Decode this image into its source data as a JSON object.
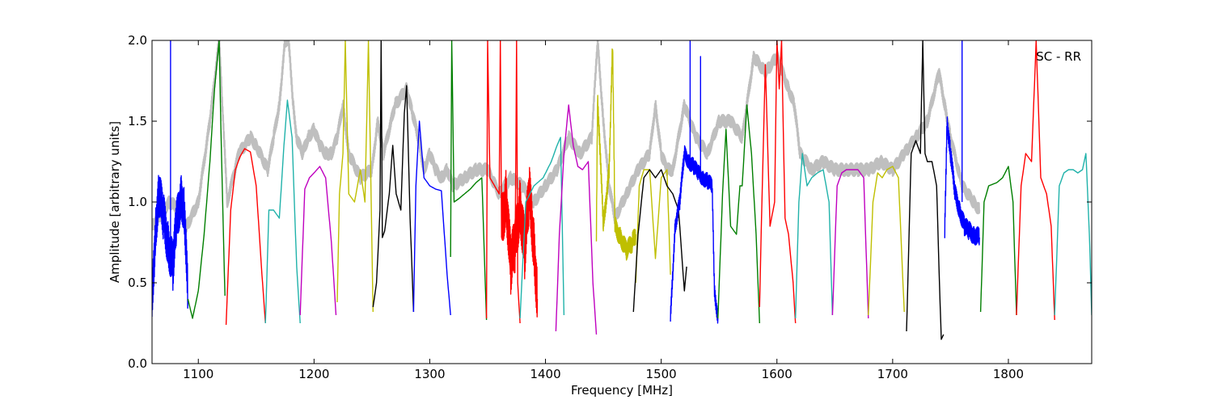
{
  "chart_data": {
    "type": "line",
    "xlabel": "Frequency [MHz]",
    "ylabel": "Amplitude [arbitrary units]",
    "xlim": [
      1060,
      1872
    ],
    "ylim": [
      0.0,
      2.0
    ],
    "xticks": [
      1100,
      1200,
      1300,
      1400,
      1500,
      1600,
      1700,
      1800
    ],
    "xtick_labels": [
      "1100",
      "1200",
      "1300",
      "1400",
      "1500",
      "1600",
      "1700",
      "1800"
    ],
    "yticks": [
      0.0,
      0.5,
      1.0,
      1.5,
      2.0
    ],
    "ytick_labels": [
      "0.0",
      "0.5",
      "1.0",
      "1.5",
      "2.0"
    ],
    "annotation": "SC - RR",
    "grid": false,
    "colors": {
      "blue": "#0000ff",
      "green": "#007f00",
      "red": "#ff0000",
      "cyan": "#20b2aa",
      "magenta": "#bf00bf",
      "yellow": "#bfbf00",
      "black": "#000000",
      "gray": "#bfbfbf"
    },
    "envelope": {
      "color": "gray",
      "x": [
        1060,
        1075,
        1085,
        1090,
        1100,
        1110,
        1118,
        1125,
        1135,
        1145,
        1150,
        1160,
        1165,
        1170,
        1175,
        1178,
        1182,
        1185,
        1190,
        1195,
        1200,
        1205,
        1210,
        1215,
        1220,
        1225,
        1230,
        1240,
        1250,
        1255,
        1260,
        1270,
        1280,
        1285,
        1290,
        1295,
        1300,
        1305,
        1310,
        1315,
        1320,
        1330,
        1340,
        1350,
        1360,
        1370,
        1380,
        1390,
        1400,
        1410,
        1420,
        1430,
        1440,
        1445,
        1450,
        1455,
        1460,
        1470,
        1480,
        1490,
        1495,
        1500,
        1505,
        1510,
        1520,
        1530,
        1540,
        1550,
        1560,
        1570,
        1580,
        1590,
        1600,
        1610,
        1615,
        1620,
        1630,
        1640,
        1650,
        1660,
        1670,
        1680,
        1690,
        1700,
        1710,
        1720,
        1730,
        1740,
        1745,
        1750,
        1760,
        1770,
        1775
      ],
      "y": [
        0.85,
        1.0,
        0.95,
        0.85,
        1.0,
        1.5,
        2.0,
        1.0,
        1.3,
        1.4,
        1.35,
        1.2,
        1.4,
        1.6,
        2.0,
        2.0,
        1.6,
        1.4,
        1.3,
        1.4,
        1.45,
        1.35,
        1.3,
        1.3,
        1.4,
        1.6,
        1.3,
        1.15,
        1.2,
        1.5,
        1.3,
        1.6,
        1.7,
        1.55,
        1.4,
        1.2,
        1.3,
        1.2,
        1.15,
        1.2,
        1.1,
        1.15,
        1.2,
        1.2,
        1.05,
        1.15,
        1.1,
        1.0,
        1.1,
        1.2,
        1.4,
        1.3,
        1.4,
        2.0,
        1.5,
        1.1,
        0.9,
        1.05,
        1.2,
        1.3,
        1.6,
        1.3,
        1.2,
        1.2,
        1.6,
        1.4,
        1.3,
        1.5,
        1.5,
        1.4,
        1.9,
        1.8,
        1.9,
        1.7,
        1.6,
        1.3,
        1.2,
        1.25,
        1.2,
        1.2,
        1.2,
        1.2,
        1.25,
        1.2,
        1.3,
        1.4,
        1.5,
        1.8,
        1.6,
        1.4,
        1.1,
        1.0,
        0.95
      ]
    },
    "series": [
      {
        "color": "blue",
        "x": [
          1060,
          1063,
          1066,
          1070,
          1074,
          1078,
          1081,
          1085,
          1088,
          1091
        ],
        "y": [
          0.35,
          0.85,
          1.05,
          0.9,
          0.75,
          0.6,
          0.85,
          1.05,
          0.95,
          0.4
        ],
        "noise": 0.15
      },
      {
        "color": "blue",
        "x": [
          1076,
          1076,
          1076
        ],
        "y": [
          0.7,
          2.0,
          0.7
        ]
      },
      {
        "color": "green",
        "x": [
          1091,
          1095,
          1100,
          1105,
          1110,
          1114,
          1118,
          1120,
          1123
        ],
        "y": [
          0.4,
          0.28,
          0.45,
          0.8,
          1.25,
          1.7,
          2.0,
          1.3,
          0.42
        ]
      },
      {
        "color": "red",
        "x": [
          1124,
          1128,
          1132,
          1136,
          1140,
          1145,
          1150,
          1155,
          1158
        ],
        "y": [
          0.24,
          0.95,
          1.2,
          1.28,
          1.33,
          1.31,
          1.1,
          0.55,
          0.25
        ]
      },
      {
        "color": "cyan",
        "x": [
          1158,
          1161,
          1165,
          1170,
          1174,
          1177,
          1181,
          1185,
          1188
        ],
        "y": [
          0.25,
          0.95,
          0.95,
          0.9,
          1.35,
          1.63,
          1.4,
          0.6,
          0.25
        ]
      },
      {
        "color": "magenta",
        "x": [
          1188,
          1192,
          1196,
          1200,
          1205,
          1210,
          1215,
          1219
        ],
        "y": [
          0.3,
          1.08,
          1.15,
          1.18,
          1.22,
          1.15,
          0.75,
          0.3
        ]
      },
      {
        "color": "yellow",
        "x": [
          1220,
          1222,
          1225,
          1227,
          1230,
          1235,
          1240,
          1244,
          1247,
          1251
        ],
        "y": [
          0.38,
          1.05,
          1.3,
          2.0,
          1.05,
          1.0,
          1.2,
          1.0,
          2.0,
          0.32
        ]
      },
      {
        "color": "black",
        "x": [
          1251,
          1254,
          1257,
          1258,
          1259,
          1261,
          1265,
          1268,
          1271,
          1275,
          1278,
          1280,
          1283,
          1286
        ],
        "y": [
          0.35,
          0.5,
          0.95,
          2.0,
          0.78,
          0.82,
          1.05,
          1.35,
          1.05,
          0.95,
          1.55,
          1.72,
          0.9,
          0.32
        ]
      },
      {
        "color": "blue",
        "x": [
          1286,
          1288,
          1291,
          1295,
          1300,
          1305,
          1310,
          1315,
          1318
        ],
        "y": [
          0.32,
          1.1,
          1.5,
          1.15,
          1.1,
          1.08,
          1.07,
          0.55,
          0.3
        ]
      },
      {
        "color": "green",
        "x": [
          1318,
          1319,
          1321,
          1325,
          1330,
          1335,
          1340,
          1345,
          1349
        ],
        "y": [
          0.66,
          2.0,
          1.0,
          1.02,
          1.05,
          1.08,
          1.12,
          1.15,
          0.27
        ]
      },
      {
        "color": "red",
        "x": [
          1349,
          1350,
          1352,
          1356,
          1360,
          1361,
          1362,
          1365,
          1370,
          1374,
          1375,
          1376,
          1378
        ],
        "y": [
          0.28,
          2.0,
          1.15,
          1.1,
          1.05,
          2.0,
          0.8,
          1.0,
          0.55,
          0.9,
          2.0,
          0.5,
          0.25
        ]
      },
      {
        "color": "red",
        "x": [
          1362,
          1366,
          1370,
          1374,
          1378,
          1382,
          1386,
          1390,
          1393
        ],
        "y": [
          0.85,
          1.05,
          0.6,
          0.75,
          1.0,
          0.7,
          1.05,
          0.75,
          0.4
        ],
        "noise": 0.18
      },
      {
        "color": "cyan",
        "x": [
          1378,
          1383,
          1390,
          1398,
          1405,
          1410,
          1413,
          1416
        ],
        "y": [
          0.28,
          1.0,
          1.1,
          1.15,
          1.25,
          1.35,
          1.4,
          0.3
        ]
      },
      {
        "color": "magenta",
        "x": [
          1409,
          1412,
          1416,
          1420,
          1424,
          1428,
          1432,
          1437,
          1441,
          1444
        ],
        "y": [
          0.2,
          0.8,
          1.3,
          1.6,
          1.35,
          1.22,
          1.2,
          1.25,
          0.5,
          0.18
        ]
      },
      {
        "color": "yellow",
        "x": [
          1444,
          1445,
          1447,
          1450,
          1455,
          1458,
          1460,
          1465,
          1470,
          1475,
          1478
        ],
        "y": [
          0.78,
          1.65,
          1.35,
          0.85,
          1.2,
          2.0,
          0.85,
          0.78,
          0.7,
          0.75,
          0.8
        ],
        "noise": 0.06
      },
      {
        "color": "yellow",
        "x": [
          1478,
          1481,
          1485,
          1490,
          1495,
          1500,
          1505,
          1508
        ],
        "y": [
          0.5,
          1.1,
          1.2,
          1.2,
          0.65,
          1.15,
          1.2,
          0.55
        ]
      },
      {
        "color": "black",
        "x": [
          1476,
          1480,
          1485,
          1490,
          1495,
          1500,
          1505,
          1510,
          1515,
          1520,
          1522
        ],
        "y": [
          0.32,
          0.8,
          1.15,
          1.2,
          1.15,
          1.2,
          1.1,
          1.05,
          0.95,
          0.45,
          0.6
        ]
      },
      {
        "color": "blue",
        "x": [
          1508,
          1512,
          1516,
          1520,
          1524,
          1528,
          1532,
          1536,
          1540,
          1544,
          1546,
          1549
        ],
        "y": [
          0.28,
          0.85,
          1.0,
          1.3,
          1.25,
          1.22,
          1.18,
          1.15,
          1.13,
          1.1,
          0.45,
          0.28
        ],
        "noise": 0.05
      },
      {
        "color": "blue",
        "x": [
          1525,
          1525,
          1525,
          1534,
          1534,
          1534
        ],
        "y": [
          1.2,
          2.0,
          1.2,
          1.2,
          1.9,
          1.2
        ]
      },
      {
        "color": "green",
        "x": [
          1549,
          1553,
          1556,
          1560,
          1565,
          1568,
          1570,
          1574,
          1578,
          1582,
          1585
        ],
        "y": [
          0.28,
          1.05,
          1.45,
          0.85,
          0.8,
          1.1,
          1.1,
          1.6,
          1.3,
          0.8,
          0.25
        ]
      },
      {
        "color": "red",
        "x": [
          1585,
          1587,
          1590,
          1594,
          1598,
          1600,
          1602,
          1604,
          1607,
          1610,
          1614,
          1616
        ],
        "y": [
          0.35,
          1.0,
          1.85,
          0.85,
          1.0,
          2.0,
          1.7,
          2.0,
          0.9,
          0.8,
          0.5,
          0.25
        ]
      },
      {
        "color": "cyan",
        "x": [
          1616,
          1619,
          1622,
          1626,
          1630,
          1635,
          1640,
          1645,
          1648
        ],
        "y": [
          0.28,
          1.0,
          1.3,
          1.1,
          1.15,
          1.18,
          1.2,
          1.0,
          0.3
        ]
      },
      {
        "color": "magenta",
        "x": [
          1648,
          1652,
          1656,
          1660,
          1665,
          1670,
          1675,
          1679
        ],
        "y": [
          0.3,
          1.1,
          1.18,
          1.2,
          1.2,
          1.2,
          1.15,
          0.28
        ]
      },
      {
        "color": "yellow",
        "x": [
          1679,
          1683,
          1687,
          1691,
          1695,
          1700,
          1705,
          1710
        ],
        "y": [
          0.3,
          1.0,
          1.18,
          1.15,
          1.2,
          1.22,
          1.15,
          0.32
        ]
      },
      {
        "color": "black",
        "x": [
          1712,
          1716,
          1720,
          1724,
          1726,
          1728,
          1730,
          1734,
          1738,
          1740,
          1742,
          1744
        ],
        "y": [
          0.2,
          1.3,
          1.38,
          1.3,
          2.0,
          1.3,
          1.25,
          1.25,
          1.1,
          0.6,
          0.15,
          0.18
        ]
      },
      {
        "color": "blue",
        "x": [
          1745,
          1747,
          1750,
          1754,
          1758,
          1762,
          1766,
          1770,
          1775
        ],
        "y": [
          0.8,
          1.5,
          1.3,
          1.05,
          0.95,
          0.85,
          0.82,
          0.8,
          0.78
        ],
        "noise": 0.06
      },
      {
        "color": "blue",
        "x": [
          1760,
          1760,
          1760
        ],
        "y": [
          1.0,
          2.0,
          1.0
        ]
      },
      {
        "color": "green",
        "x": [
          1776,
          1779,
          1783,
          1790,
          1795,
          1800,
          1804,
          1807
        ],
        "y": [
          0.32,
          1.0,
          1.1,
          1.12,
          1.15,
          1.22,
          1.0,
          0.3
        ]
      },
      {
        "color": "red",
        "x": [
          1807,
          1811,
          1815,
          1820,
          1824,
          1828,
          1833,
          1837,
          1840
        ],
        "y": [
          0.3,
          1.1,
          1.3,
          1.25,
          2.0,
          1.15,
          1.05,
          0.85,
          0.27
        ]
      },
      {
        "color": "cyan",
        "x": [
          1840,
          1844,
          1848,
          1852,
          1856,
          1860,
          1864,
          1867,
          1870,
          1872
        ],
        "y": [
          0.3,
          1.1,
          1.18,
          1.2,
          1.2,
          1.18,
          1.2,
          1.3,
          0.8,
          0.3
        ]
      }
    ]
  }
}
